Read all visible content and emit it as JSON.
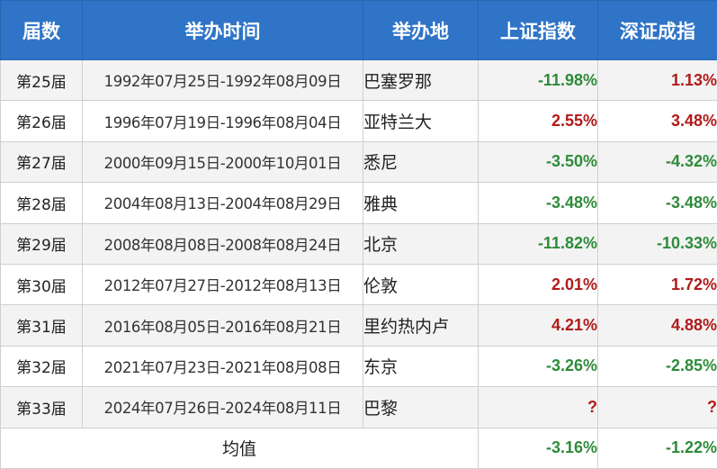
{
  "colors": {
    "header_bg": "#2f74c6",
    "rise": "#b11a1a",
    "fall": "#2e8b3a",
    "stripe": "#f3f3f3"
  },
  "header": {
    "session": "届数",
    "period": "举办时间",
    "host": "举办地",
    "sse": "上证指数",
    "szse": "深证成指"
  },
  "rows": [
    {
      "session": "第25届",
      "period": "1992年07月25日-1992年08月09日",
      "host": "巴塞罗那",
      "sse": "-11.98%",
      "sse_dir": "down",
      "szse": "1.13%",
      "szse_dir": "up"
    },
    {
      "session": "第26届",
      "period": "1996年07月19日-1996年08月04日",
      "host": "亚特兰大",
      "sse": "2.55%",
      "sse_dir": "up",
      "szse": "3.48%",
      "szse_dir": "up"
    },
    {
      "session": "第27届",
      "period": "2000年09月15日-2000年10月01日",
      "host": "悉尼",
      "sse": "-3.50%",
      "sse_dir": "down",
      "szse": "-4.32%",
      "szse_dir": "down"
    },
    {
      "session": "第28届",
      "period": "2004年08月13日-2004年08月29日",
      "host": "雅典",
      "sse": "-3.48%",
      "sse_dir": "down",
      "szse": "-3.48%",
      "szse_dir": "down"
    },
    {
      "session": "第29届",
      "period": "2008年08月08日-2008年08月24日",
      "host": "北京",
      "sse": "-11.82%",
      "sse_dir": "down",
      "szse": "-10.33%",
      "szse_dir": "down"
    },
    {
      "session": "第30届",
      "period": "2012年07月27日-2012年08月13日",
      "host": "伦敦",
      "sse": "2.01%",
      "sse_dir": "up",
      "szse": "1.72%",
      "szse_dir": "up"
    },
    {
      "session": "第31届",
      "period": "2016年08月05日-2016年08月21日",
      "host": "里约热内卢",
      "sse": "4.21%",
      "sse_dir": "up",
      "szse": "4.88%",
      "szse_dir": "up"
    },
    {
      "session": "第32届",
      "period": "2021年07月23日-2021年08月08日",
      "host": "东京",
      "sse": "-3.26%",
      "sse_dir": "down",
      "szse": "-2.85%",
      "szse_dir": "down"
    },
    {
      "session": "第33届",
      "period": "2024年07月26日-2024年08月11日",
      "host": "巴黎",
      "sse": "?",
      "sse_dir": "unknown",
      "szse": "?",
      "szse_dir": "unknown"
    }
  ],
  "average": {
    "label": "均值",
    "sse": "-3.16%",
    "sse_dir": "down",
    "szse": "-1.22%",
    "szse_dir": "down"
  }
}
